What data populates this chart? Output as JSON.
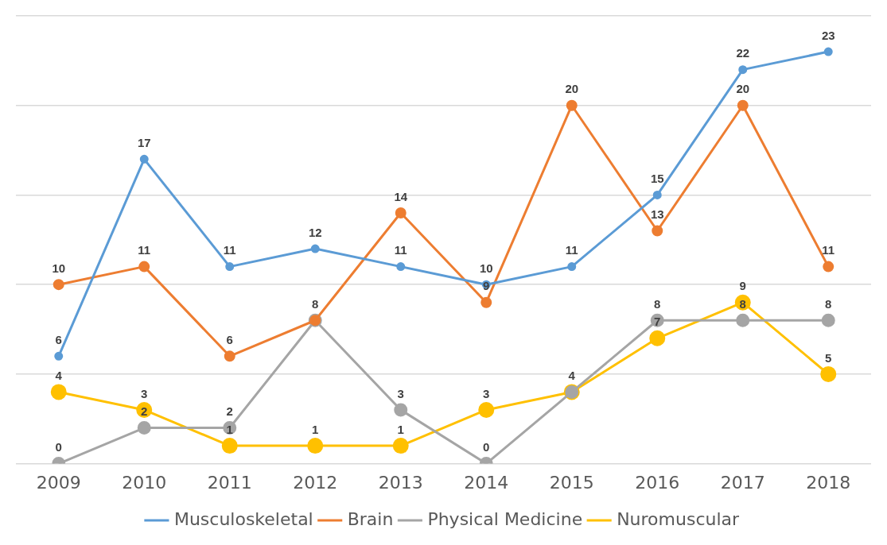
{
  "chart_data": {
    "type": "line",
    "categories": [
      "2009",
      "2010",
      "2011",
      "2012",
      "2013",
      "2014",
      "2015",
      "2016",
      "2017",
      "2018"
    ],
    "series": [
      {
        "name": "Musculoskeletal",
        "color": "#5b9bd5",
        "values": [
          6,
          17,
          11,
          12,
          11,
          10,
          11,
          15,
          22,
          23
        ],
        "value_labels": [
          "6",
          "17",
          "11",
          "12",
          "11",
          "10",
          "11",
          "15",
          "22",
          "23"
        ]
      },
      {
        "name": "Brain",
        "color": "#ed7d31",
        "values": [
          10,
          11,
          6,
          8,
          14,
          9,
          20,
          13,
          20,
          11
        ],
        "value_labels": [
          "10",
          "11",
          "6",
          "8",
          "14",
          "9",
          "20",
          "13",
          "20",
          "11"
        ]
      },
      {
        "name": "Physical Medicine",
        "color": "#a5a5a5",
        "values": [
          0,
          2,
          2,
          8,
          3,
          0,
          4,
          8,
          8,
          8
        ],
        "value_labels": [
          "0",
          "2",
          "2",
          null,
          "3",
          "0",
          "4",
          "8",
          "8",
          "8"
        ]
      },
      {
        "name": "Nuromuscular",
        "color": "#ffc000",
        "values": [
          4,
          3,
          1,
          1,
          1,
          3,
          4,
          7,
          9,
          5
        ],
        "value_labels": [
          "4",
          "3",
          "1",
          "1",
          "1",
          "3",
          null,
          "7",
          "9",
          "5"
        ]
      }
    ],
    "ylim": [
      0,
      25
    ],
    "yticks": [
      {
        "value": 0,
        "label": null
      },
      {
        "value": 5,
        "label": null
      },
      {
        "value": 10,
        "label": null
      },
      {
        "value": 15,
        "label": null
      },
      {
        "value": 20,
        "label": null
      },
      {
        "value": 25,
        "label": null
      }
    ],
    "tick_labels": "x",
    "grid": "y",
    "legend": "bottom",
    "marker": "circle",
    "line_style": "solid"
  }
}
